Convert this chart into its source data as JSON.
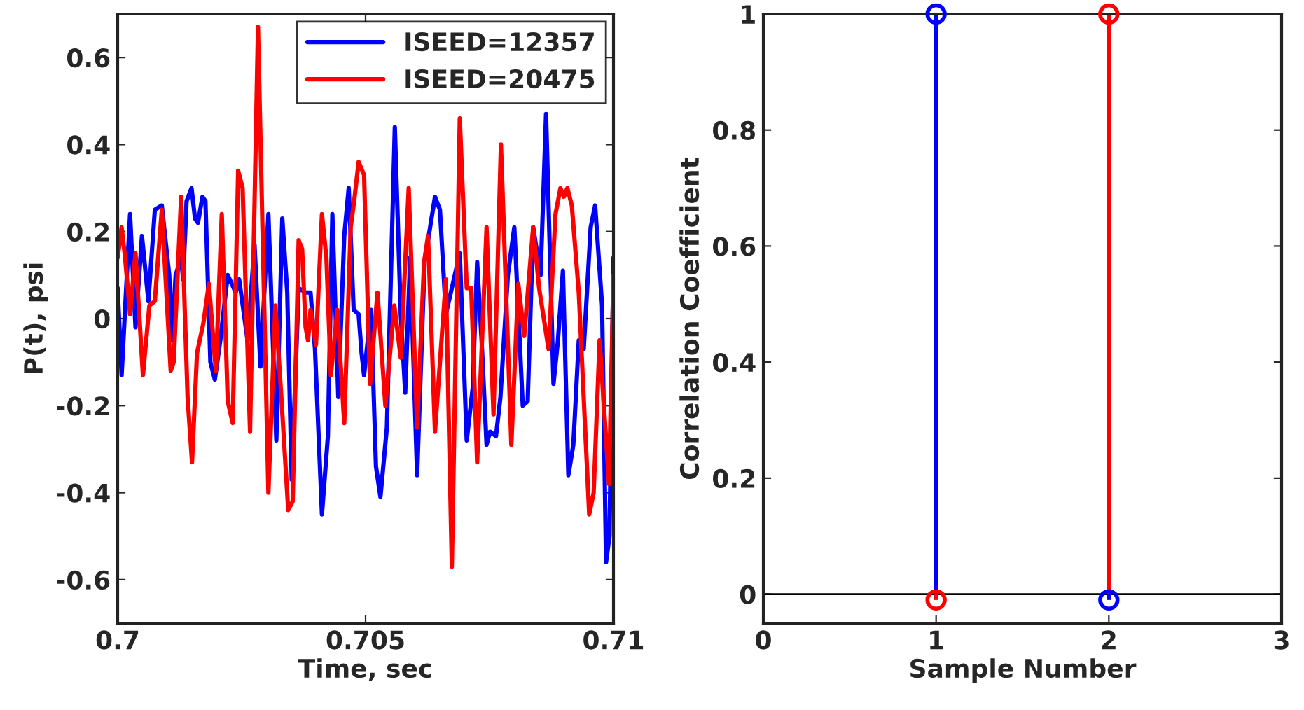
{
  "chart_data": [
    {
      "type": "line",
      "xlabel": "Time, sec",
      "ylabel": "P(t), psi",
      "xlim": [
        0.7,
        0.71
      ],
      "xticks": [
        0.7,
        0.705,
        0.71
      ],
      "ylim": [
        -0.7,
        0.7
      ],
      "yticks": [
        -0.6,
        -0.4,
        -0.2,
        0,
        0.2,
        0.4,
        0.6
      ],
      "grid": false,
      "legend": "top right",
      "marker": "none",
      "line_style": "solid",
      "series": [
        {
          "name": "ISEED=12357",
          "color": "#0000ff",
          "x": [
            0.7,
            0.70008,
            0.70025,
            0.70036,
            0.70049,
            0.70062,
            0.70075,
            0.70089,
            0.70104,
            0.70109,
            0.70117,
            0.70128,
            0.70132,
            0.70139,
            0.70149,
            0.70156,
            0.70162,
            0.70171,
            0.70177,
            0.70187,
            0.70196,
            0.70207,
            0.70222,
            0.70238,
            0.70245,
            0.70262,
            0.70276,
            0.70288,
            0.70304,
            0.7032,
            0.70332,
            0.70342,
            0.70351,
            0.70365,
            0.70379,
            0.70389,
            0.70398,
            0.70412,
            0.70424,
            0.70433,
            0.70445,
            0.70457,
            0.70466,
            0.70476,
            0.70486,
            0.70492,
            0.70497,
            0.70511,
            0.70521,
            0.7053,
            0.70543,
            0.70559,
            0.70571,
            0.7058,
            0.7059,
            0.70604,
            0.70619,
            0.7064,
            0.7065,
            0.70662,
            0.70674,
            0.7069,
            0.70704,
            0.70716,
            0.70725,
            0.70734,
            0.70744,
            0.70751,
            0.70763,
            0.70772,
            0.70787,
            0.708,
            0.70817,
            0.70827,
            0.70838,
            0.70853,
            0.70864,
            0.70879,
            0.70888,
            0.70898,
            0.70909,
            0.70919,
            0.7093,
            0.7094,
            0.70954,
            0.70963,
            0.70977,
            0.70985,
            0.70992,
            0.71
          ],
          "values": [
            0.07,
            -0.13,
            0.24,
            -0.02,
            0.19,
            0.04,
            0.25,
            0.26,
            0.1,
            -0.05,
            0.1,
            0.14,
            0.09,
            0.27,
            0.3,
            0.23,
            0.22,
            0.28,
            0.27,
            -0.1,
            -0.14,
            -0.05,
            0.1,
            0.06,
            0.09,
            -0.05,
            0.17,
            -0.11,
            0.24,
            -0.28,
            0.23,
            0.06,
            -0.37,
            0.07,
            0.06,
            0.06,
            -0.07,
            -0.45,
            -0.27,
            0.24,
            -0.18,
            0.19,
            0.3,
            0.02,
            0.01,
            -0.08,
            -0.13,
            0.02,
            -0.34,
            -0.41,
            -0.25,
            0.44,
            0.01,
            -0.17,
            0.14,
            -0.36,
            0.13,
            0.28,
            0.25,
            0.01,
            0.07,
            0.15,
            -0.28,
            -0.16,
            0.13,
            -0.05,
            -0.29,
            -0.26,
            -0.27,
            -0.18,
            0.1,
            0.21,
            -0.2,
            -0.19,
            0.21,
            0.1,
            0.47,
            -0.15,
            -0.05,
            0.11,
            -0.36,
            -0.29,
            -0.05,
            -0.07,
            0.21,
            0.26,
            0.03,
            -0.56,
            -0.5,
            0.14
          ]
        },
        {
          "name": "ISEED=20475",
          "color": "#ff0000",
          "x": [
            0.7,
            0.70008,
            0.70015,
            0.70025,
            0.70036,
            0.70051,
            0.70064,
            0.70075,
            0.70089,
            0.70107,
            0.70113,
            0.70128,
            0.70141,
            0.7015,
            0.7016,
            0.70173,
            0.70184,
            0.70198,
            0.7021,
            0.70222,
            0.70232,
            0.70243,
            0.70252,
            0.70267,
            0.70283,
            0.70304,
            0.70318,
            0.70329,
            0.70344,
            0.70353,
            0.70365,
            0.70372,
            0.70379,
            0.70384,
            0.70389,
            0.704,
            0.70412,
            0.70421,
            0.7043,
            0.70443,
            0.70457,
            0.7047,
            0.70477,
            0.70486,
            0.70497,
            0.70509,
            0.70524,
            0.7054,
            0.70558,
            0.70571,
            0.70587,
            0.70604,
            0.70618,
            0.70626,
            0.7064,
            0.70662,
            0.70674,
            0.7069,
            0.70704,
            0.70713,
            0.70725,
            0.70744,
            0.70758,
            0.70773,
            0.70794,
            0.70808,
            0.7082,
            0.70838,
            0.7085,
            0.70869,
            0.70883,
            0.70893,
            0.709,
            0.70907,
            0.70916,
            0.7093,
            0.70951,
            0.7096,
            0.70972,
            0.70991,
            0.71
          ],
          "values": [
            0.14,
            0.21,
            0.14,
            0.01,
            0.15,
            -0.13,
            0.03,
            0.04,
            0.25,
            -0.12,
            -0.1,
            0.28,
            -0.18,
            -0.33,
            -0.08,
            -0.01,
            0.08,
            -0.12,
            0.24,
            -0.19,
            -0.24,
            0.34,
            0.3,
            -0.26,
            0.67,
            -0.4,
            0.03,
            -0.16,
            -0.44,
            -0.42,
            0.18,
            0.16,
            -0.02,
            -0.05,
            0.02,
            -0.06,
            0.24,
            0.14,
            -0.13,
            0.02,
            -0.24,
            0.21,
            0.27,
            0.36,
            0.33,
            -0.15,
            0.06,
            -0.2,
            0.03,
            -0.09,
            0.3,
            -0.25,
            0.13,
            0.19,
            -0.26,
            0.09,
            -0.57,
            0.46,
            0.07,
            0.07,
            -0.33,
            0.21,
            -0.22,
            0.4,
            -0.29,
            0.08,
            -0.04,
            0.21,
            0.07,
            -0.07,
            0.24,
            0.3,
            0.28,
            0.3,
            0.26,
            0.06,
            -0.45,
            -0.4,
            -0.05,
            -0.38,
            0.1
          ]
        }
      ]
    },
    {
      "type": "lollipop",
      "xlabel": "Sample Number",
      "ylabel": "Correlation Coefficient",
      "xlim": [
        0,
        3
      ],
      "xticks": [
        0,
        1,
        2,
        3
      ],
      "ylim": [
        -0.05,
        1
      ],
      "yticks": [
        0,
        0.2,
        0.4,
        0.6,
        0.8,
        1
      ],
      "grid": false,
      "marker": "circle",
      "ref_lines": [
        {
          "axis": "y",
          "value": 0,
          "color": "#000000"
        }
      ],
      "series": [
        {
          "color": "#0000ff",
          "x": [
            1,
            2
          ],
          "values": [
            1,
            -0.01
          ]
        },
        {
          "color": "#ff0000",
          "x": [
            1,
            2
          ],
          "values": [
            -0.01,
            1
          ]
        }
      ]
    }
  ]
}
